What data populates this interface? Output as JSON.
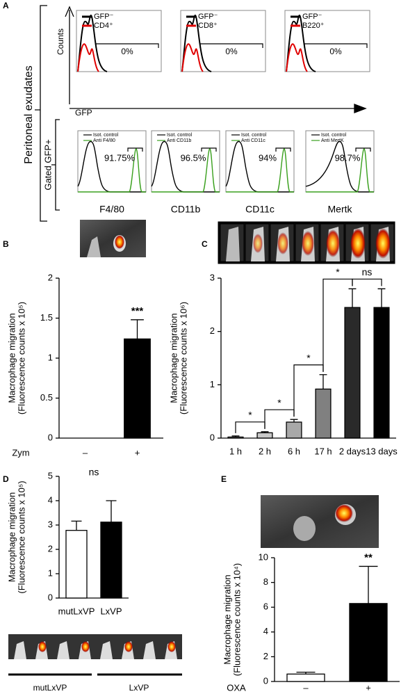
{
  "panel_labels": [
    "A",
    "B",
    "C",
    "D",
    "E"
  ],
  "panel_a": {
    "side_label": "Peritoneal exudates",
    "counts_label": "Counts",
    "gfp_label": "GFP",
    "gated_label": "Gated GFP+",
    "top": [
      {
        "legend": [
          "GFP⁻",
          "CD4⁺"
        ],
        "gate": "0%"
      },
      {
        "legend": [
          "GFP⁻",
          "CD8⁺"
        ],
        "gate": "0%"
      },
      {
        "legend": [
          "GFP⁻",
          "B220⁺"
        ],
        "gate": "0%"
      }
    ],
    "bottom": [
      {
        "legend": [
          "Isot. control",
          "Anti F4/80"
        ],
        "gate": "91.75%",
        "marker": "F4/80"
      },
      {
        "legend": [
          "Isot. control",
          "Anti CD11b"
        ],
        "gate": "96.5%",
        "marker": "CD11b"
      },
      {
        "legend": [
          "Isot. control",
          "Anti CD11c"
        ],
        "gate": "94%",
        "marker": "CD11c"
      },
      {
        "legend": [
          "Isot. control",
          "Anti MertK"
        ],
        "gate": "98.7%",
        "marker": "Mertk"
      }
    ]
  },
  "panel_d_groups": [
    "mutLxVP",
    "LxVP"
  ],
  "chart_data": [
    {
      "type": "bar",
      "y_label": [
        "Macrophage migration",
        "(Fluorescence counts x 10⁵)"
      ],
      "x_label": "Zym",
      "categories": [
        "–",
        "+"
      ],
      "values": [
        0,
        1.24
      ],
      "errors": [
        0,
        0.24
      ],
      "colors": [
        "#ffffff",
        "#000000"
      ],
      "bar_labels": [
        null,
        "***"
      ],
      "ylim": [
        0,
        2
      ],
      "yticks": [
        0,
        0.5,
        1,
        1.5,
        2
      ]
    },
    {
      "type": "bar",
      "y_label": [
        "Macrophage migration",
        "(Fluorescence counts x 10⁶)"
      ],
      "categories": [
        "1 h",
        "2 h",
        "6 h",
        "17 h",
        "2 days",
        "13 days"
      ],
      "values": [
        0.02,
        0.1,
        0.3,
        0.92,
        2.45,
        2.45
      ],
      "errors": [
        0.02,
        0.02,
        0.05,
        0.27,
        0.35,
        0.35
      ],
      "colors": [
        "#e0e0e0",
        "#c8c8c8",
        "#a8a8a8",
        "#808080",
        "#2a2a2a",
        "#000000"
      ],
      "comparisons": [
        "*",
        "*",
        "*",
        "*",
        "ns"
      ],
      "comparison_brackets": true,
      "ylim": [
        0,
        3
      ],
      "yticks": [
        0,
        1,
        2,
        3
      ]
    },
    {
      "type": "bar",
      "y_label": [
        "Macrophage migration",
        "(Fluorescence counts x 10⁵)"
      ],
      "categories": [
        "mutLxVP",
        "LxVP"
      ],
      "values": [
        2.78,
        3.12
      ],
      "errors": [
        0.38,
        0.88
      ],
      "colors": [
        "#ffffff",
        "#000000"
      ],
      "comparisons": [
        "ns"
      ],
      "comparison_brackets": false,
      "ylim": [
        0,
        5
      ],
      "yticks": [
        0,
        1,
        2,
        3,
        4,
        5
      ]
    },
    {
      "type": "bar",
      "y_label": [
        "Macrophage migration",
        "(Fluorescence counts x 10⁴)"
      ],
      "x_label": "OXA",
      "categories": [
        "–",
        "+"
      ],
      "values": [
        0.6,
        6.3
      ],
      "errors": [
        0.15,
        3.0
      ],
      "colors": [
        "#ffffff",
        "#000000"
      ],
      "bar_labels": [
        null,
        "**"
      ],
      "ylim": [
        0,
        10
      ],
      "yticks": [
        0,
        2,
        4,
        6,
        8,
        10
      ]
    }
  ]
}
